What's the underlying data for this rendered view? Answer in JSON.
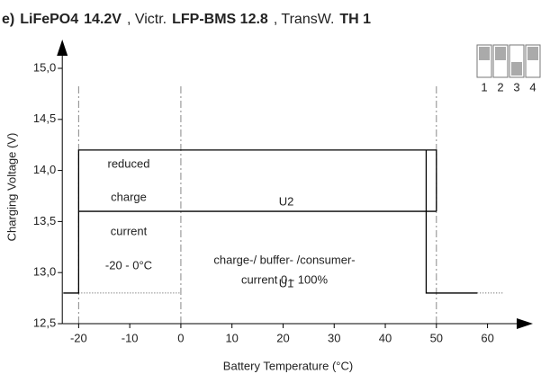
{
  "chart_data": {
    "type": "line",
    "title_parts": [
      {
        "text": "e)",
        "bold": true
      },
      {
        "text": "LiFePO4",
        "bold": true
      },
      {
        "text": "14.2V",
        "bold": true
      },
      {
        "text": ",  Victr.",
        "bold": false
      },
      {
        "text": "LFP-BMS 12.8",
        "bold": true
      },
      {
        "text": ", TransW.",
        "bold": false
      },
      {
        "text": "TH 1",
        "bold": true
      }
    ],
    "xlabel": "Battery Temperature (°C)",
    "ylabel": "Charging Voltage (V)",
    "xlim": [
      -23.2,
      68
    ],
    "ylim": [
      12.5,
      15.25
    ],
    "xticks": [
      -20,
      -10,
      0,
      10,
      20,
      30,
      40,
      50,
      60
    ],
    "yticks": [
      {
        "value": 12.5,
        "label": "12,5"
      },
      {
        "value": 13.0,
        "label": "13,0"
      },
      {
        "value": 13.5,
        "label": "13,5"
      },
      {
        "value": 14.0,
        "label": "14,0"
      },
      {
        "value": 14.5,
        "label": "14,5"
      },
      {
        "value": 15.0,
        "label": "15,0"
      }
    ],
    "series": [
      {
        "name": "U1",
        "color": "#000000",
        "x": [
          -23,
          -20,
          -20,
          50,
          50,
          null,
          48,
          48,
          58
        ],
        "values": [
          12.8,
          12.8,
          14.2,
          14.2,
          13.6,
          null,
          14.2,
          12.8,
          12.8
        ]
      },
      {
        "name": "U2",
        "color": "#000000",
        "x": [
          -20,
          50
        ],
        "values": [
          13.6,
          13.6
        ]
      }
    ],
    "reference_lines": [
      {
        "y": 12.8,
        "x": [
          -20,
          0
        ]
      },
      {
        "y": 12.8,
        "x": [
          58,
          63
        ]
      }
    ],
    "vlines": [
      -20,
      0,
      50
    ],
    "annotations": [
      "reduced",
      "charge",
      "current",
      "-20 - 0°C",
      "charge-/ buffer- /consumer-",
      "current 0 - 100%"
    ],
    "dip_labels": [
      "1",
      "2",
      "3",
      "4"
    ]
  }
}
